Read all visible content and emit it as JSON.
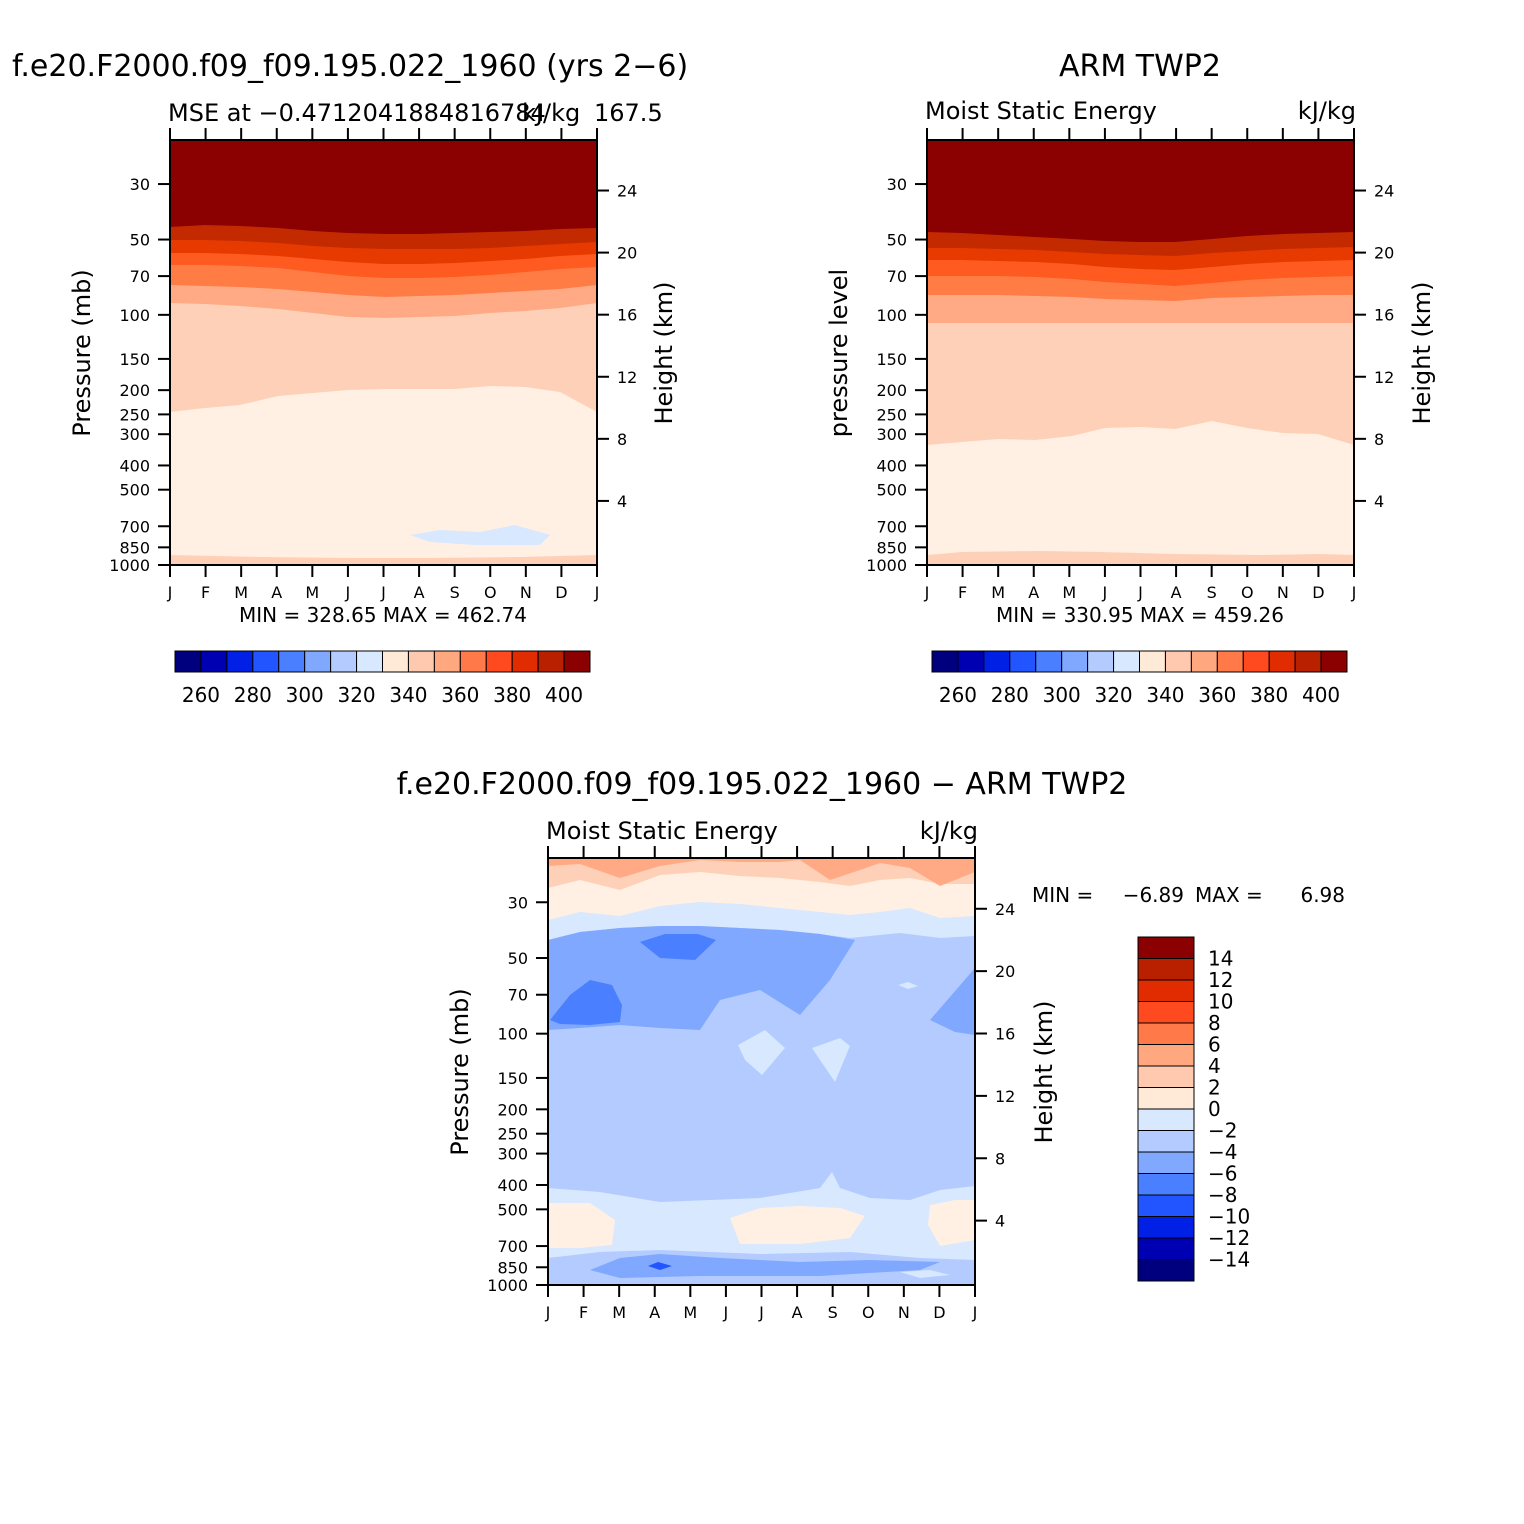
{
  "panels": [
    {
      "id": "model",
      "main_title": "f.e20.F2000.f09_f09.195.022_1960 (yrs 2-6)",
      "left_string": "MSE at -0.4712041884816784",
      "center_string": "",
      "right_string": "kJ/kg",
      "right_string_overlap": "167.5",
      "y_title": "Pressure (mb)",
      "y_right_title": "Height (km)",
      "stats": "MIN = 328.65 MAX = 462.74"
    },
    {
      "id": "obs",
      "main_title": "ARM TWP2",
      "left_string": "Moist Static Energy",
      "right_string": "kJ/kg",
      "y_title": "pressure level",
      "y_right_title": "Height (km)",
      "stats": "MIN = 330.95 MAX = 459.26"
    },
    {
      "id": "diff",
      "main_title": "f.e20.F2000.f09_f09.195.022_1960 - ARM TWP2",
      "left_string": "Moist Static Energy",
      "right_string": "kJ/kg",
      "y_title": "Pressure (mb)",
      "y_right_title": "Height (km)",
      "stats_min_label": "MIN =",
      "stats_min": "-6.89",
      "stats_max_label": "MAX =",
      "stats_max": "6.98"
    }
  ],
  "chart_data": [
    {
      "type": "heatmap",
      "panel": "model",
      "x_ticks": [
        "J",
        "F",
        "M",
        "A",
        "M",
        "J",
        "J",
        "A",
        "S",
        "O",
        "N",
        "D",
        "J"
      ],
      "y_ticks_left": [
        30,
        50,
        70,
        100,
        150,
        200,
        250,
        300,
        400,
        500,
        700,
        850,
        1000
      ],
      "y_ticks_right": [
        24,
        20,
        16,
        12,
        8,
        4
      ],
      "y_scale": "log pressure",
      "colorbar": {
        "orientation": "horizontal",
        "levels": [
          250,
          260,
          270,
          280,
          290,
          300,
          310,
          320,
          330,
          340,
          350,
          360,
          370,
          380,
          390,
          400
        ],
        "labels": [
          "260",
          "280",
          "300",
          "320",
          "340",
          "360",
          "380",
          "400"
        ]
      },
      "bands_top_to_bottom": [
        {
          "range": ">400",
          "top_hpa": 20,
          "bottom_hpa": 55
        },
        {
          "range": "390-400",
          "top_hpa": 55,
          "bottom_hpa": 63
        },
        {
          "range": "380-390",
          "top_hpa": 63,
          "bottom_hpa": 72
        },
        {
          "range": "370-380",
          "top_hpa": 72,
          "bottom_hpa": 82
        },
        {
          "range": "360-370",
          "top_hpa": 82,
          "bottom_hpa": 100
        },
        {
          "range": "350-360",
          "top_hpa": 100,
          "bottom_hpa": 118
        },
        {
          "range": "340-350",
          "top_hpa": 118,
          "bottom_hpa": 260
        },
        {
          "range": "330-340",
          "top_hpa": 260,
          "bottom_hpa": 960
        },
        {
          "range": "320-330",
          "note": "small patch Aug-Nov near 720 hPa"
        }
      ]
    },
    {
      "type": "heatmap",
      "panel": "obs",
      "x_ticks": [
        "J",
        "F",
        "M",
        "A",
        "M",
        "J",
        "J",
        "A",
        "S",
        "O",
        "N",
        "D",
        "J"
      ],
      "y_ticks_left": [
        30,
        50,
        70,
        100,
        150,
        200,
        250,
        300,
        400,
        500,
        700,
        850,
        1000
      ],
      "y_ticks_right": [
        24,
        20,
        16,
        12,
        8,
        4
      ],
      "y_scale": "log pressure",
      "colorbar": {
        "orientation": "horizontal",
        "levels": [
          250,
          260,
          270,
          280,
          290,
          300,
          310,
          320,
          330,
          340,
          350,
          360,
          370,
          380,
          390,
          400
        ],
        "labels": [
          "260",
          "280",
          "300",
          "320",
          "340",
          "360",
          "380",
          "400"
        ]
      },
      "bands_top_to_bottom": [
        {
          "range": ">400",
          "top_hpa": 20,
          "bottom_hpa": 58
        },
        {
          "range": "390-400",
          "top_hpa": 58,
          "bottom_hpa": 65
        },
        {
          "range": "380-390",
          "top_hpa": 65,
          "bottom_hpa": 74
        },
        {
          "range": "370-380",
          "top_hpa": 74,
          "bottom_hpa": 84
        },
        {
          "range": "360-370",
          "top_hpa": 84,
          "bottom_hpa": 100
        },
        {
          "range": "350-360",
          "top_hpa": 100,
          "bottom_hpa": 125
        },
        {
          "range": "340-350",
          "top_hpa": 125,
          "bottom_hpa": 340
        },
        {
          "range": "330-340",
          "top_hpa": 340,
          "bottom_hpa": 960
        }
      ]
    },
    {
      "type": "heatmap",
      "panel": "diff",
      "x_ticks": [
        "J",
        "F",
        "M",
        "A",
        "M",
        "J",
        "J",
        "A",
        "S",
        "O",
        "N",
        "D",
        "J"
      ],
      "y_ticks_left": [
        30,
        50,
        70,
        100,
        150,
        200,
        250,
        300,
        400,
        500,
        700,
        850,
        1000
      ],
      "y_ticks_right": [
        24,
        20,
        16,
        12,
        8,
        4
      ],
      "y_scale": "log pressure",
      "colorbar": {
        "orientation": "vertical",
        "levels": [
          -14,
          -12,
          -10,
          -8,
          -6,
          -4,
          -2,
          0,
          2,
          4,
          6,
          8,
          10,
          12,
          14
        ],
        "labels": [
          "14",
          "12",
          "10",
          "8",
          "6",
          "4",
          "2",
          "0",
          "−2",
          "−4",
          "−6",
          "−8",
          "−10",
          "−12",
          "−14"
        ]
      },
      "regions": [
        {
          "range": "4-6",
          "location": "top edge, above ~30 hPa"
        },
        {
          "range": "2-4",
          "location": "~30-40 hPa"
        },
        {
          "range": "0-2",
          "location": "~35-45 hPa and 500-700 hPa patches"
        },
        {
          "range": "-2-0",
          "location": "~45-50 hPa and 450-850 hPa"
        },
        {
          "range": "-4--2",
          "location": "50-450 hPa bulk"
        },
        {
          "range": "-6--4",
          "location": "50-120 hPa Jan-Sep and 850 hPa band"
        },
        {
          "range": "-8--6",
          "location": "Feb-Mar near 100 hPa, Apr-May near 55 hPa, Apr near 880 hPa"
        }
      ]
    }
  ],
  "colors": {
    "mse_scale": [
      "#00007f",
      "#0000b3",
      "#0020e6",
      "#2255ff",
      "#4a80ff",
      "#80a8ff",
      "#b3cbff",
      "#d7e8ff",
      "#ffead8",
      "#ffc9b0",
      "#ffa880",
      "#ff7a48",
      "#ff4a20",
      "#e02c00",
      "#b82000",
      "#8b0000"
    ],
    "diff_scale": [
      "#00007f",
      "#0000b3",
      "#0020e6",
      "#2255ff",
      "#4a80ff",
      "#80a8ff",
      "#b3cbff",
      "#d7e8ff",
      "#ffead8",
      "#ffc9b0",
      "#ffa880",
      "#ff7a48",
      "#ff4a20",
      "#e02c00",
      "#b82000",
      "#8b0000"
    ]
  }
}
